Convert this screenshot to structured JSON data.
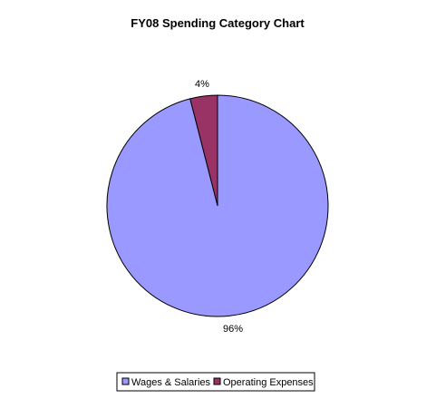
{
  "chart_data": {
    "type": "pie",
    "title": "FY08 Spending Category Chart",
    "categories": [
      "Wages & Salaries",
      "Operating Expenses"
    ],
    "values": [
      96,
      4
    ],
    "labels": [
      "96%",
      "4%"
    ],
    "colors": [
      "#9999ff",
      "#993366"
    ],
    "legend_position": "bottom",
    "start_angle": "12 o'clock",
    "direction": "clockwise"
  }
}
